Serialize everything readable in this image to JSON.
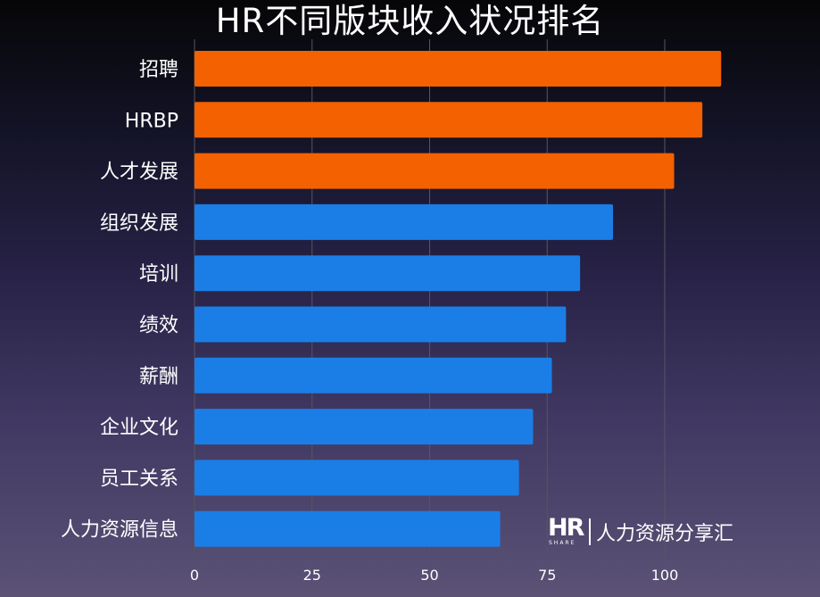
{
  "chart_data": {
    "type": "bar",
    "orientation": "horizontal",
    "title": "HR不同版块收入状况排名",
    "categories": [
      "招聘",
      "HRBP",
      "人才发展",
      "组织发展",
      "培训",
      "绩效",
      "薪酬",
      "企业文化",
      "员工关系",
      "人力资源信息"
    ],
    "values": [
      112,
      108,
      102,
      89,
      82,
      79,
      76,
      72,
      69,
      65
    ],
    "highlight_count": 3,
    "colors": {
      "highlight": "#f36100",
      "normal": "#1b7ee6",
      "grid": "#55575e"
    },
    "x_ticks": [
      0,
      25,
      50,
      75,
      100
    ],
    "xlim": [
      0,
      115
    ],
    "grid": true,
    "xlabel": "",
    "ylabel": ""
  },
  "watermark": {
    "logo_letters": "HR",
    "logo_subtext": "SHARE",
    "text": "人力资源分享汇"
  }
}
